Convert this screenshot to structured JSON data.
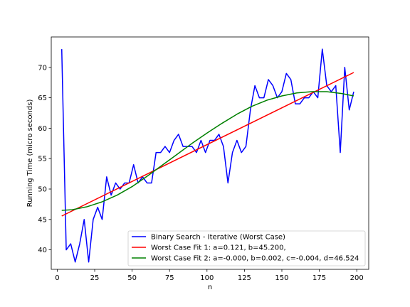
{
  "chart_data": {
    "type": "line",
    "xlabel": "n",
    "ylabel": "Running Time (micro seconds)",
    "xlim": [
      -4,
      208
    ],
    "ylim": [
      36.8,
      75
    ],
    "xticks": [
      0,
      25,
      50,
      75,
      100,
      125,
      150,
      175,
      200
    ],
    "yticks": [
      40,
      45,
      50,
      55,
      60,
      65,
      70
    ],
    "grid": false,
    "legend_position": "lower-right",
    "series": [
      {
        "name": "Binary Search - Iterative (Worst Case)",
        "color": "#0000ff",
        "x": [
          3,
          6,
          9,
          12,
          15,
          18,
          21,
          24,
          27,
          30,
          33,
          36,
          39,
          42,
          45,
          48,
          51,
          54,
          57,
          60,
          63,
          66,
          69,
          72,
          75,
          78,
          81,
          84,
          87,
          90,
          93,
          96,
          99,
          102,
          105,
          108,
          111,
          114,
          117,
          120,
          123,
          126,
          129,
          132,
          135,
          138,
          141,
          144,
          147,
          150,
          153,
          156,
          159,
          162,
          165,
          168,
          171,
          174,
          177,
          180,
          183,
          186,
          189,
          192,
          195,
          198
        ],
        "y": [
          73,
          40,
          41,
          38,
          41,
          45,
          38,
          45,
          47,
          45,
          52,
          49,
          51,
          50,
          51,
          51,
          54,
          51,
          52,
          51,
          51,
          56,
          56,
          57,
          56,
          58,
          59,
          57,
          57,
          57,
          56,
          58,
          56,
          58,
          58,
          59,
          57,
          51,
          56,
          58,
          56,
          57,
          63,
          67,
          65,
          65,
          68,
          67,
          65,
          66,
          69,
          68,
          64,
          64,
          65,
          65,
          66,
          65,
          73,
          67,
          66,
          67,
          56,
          70,
          63,
          66
        ]
      },
      {
        "name": "Worst Case Fit 1: a=0.121, b=45.200,",
        "color": "#ff0000",
        "kind": "linear",
        "a": 0.121,
        "b": 45.2,
        "x_range": [
          3,
          198
        ]
      },
      {
        "name": "Worst Case Fit 2: a=-0.000, b=0.002, c=-0.004, d=46.524",
        "color": "#008000",
        "x": [
          3,
          10,
          20,
          30,
          40,
          50,
          60,
          70,
          80,
          90,
          100,
          110,
          120,
          130,
          140,
          150,
          160,
          170,
          175,
          180,
          190,
          198
        ],
        "y": [
          46.5,
          46.6,
          47.1,
          47.9,
          49.0,
          50.4,
          52.1,
          53.9,
          55.7,
          57.5,
          59.2,
          60.8,
          62.3,
          63.6,
          64.6,
          65.3,
          65.8,
          66.0,
          66.0,
          66.0,
          65.7,
          65.3
        ]
      }
    ]
  }
}
